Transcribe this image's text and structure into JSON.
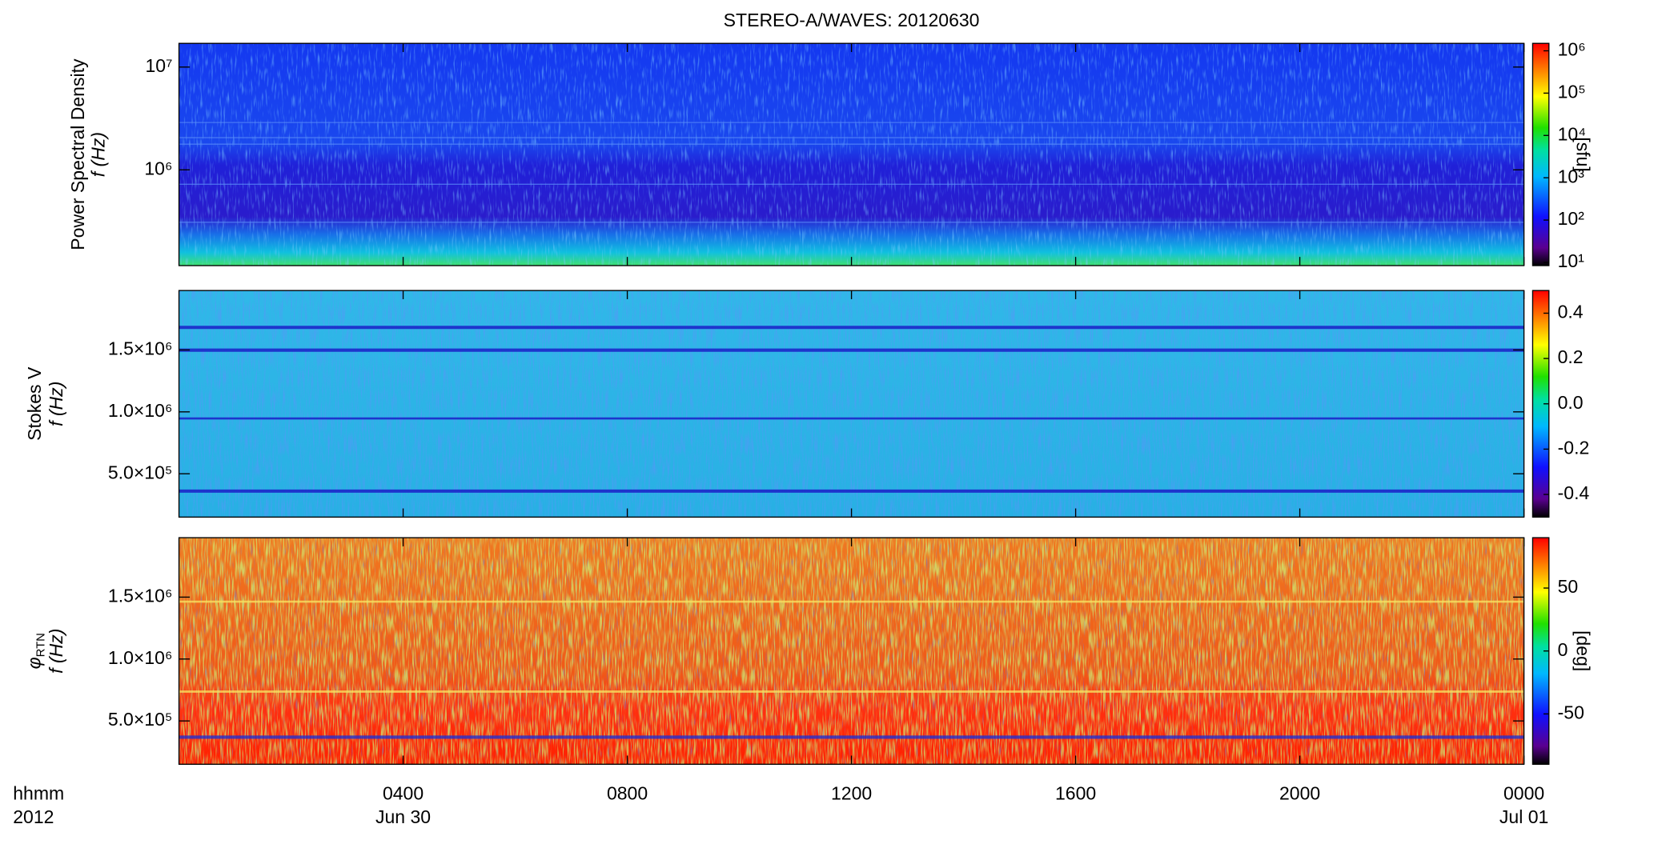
{
  "chart_data": {
    "type": "spectrogram",
    "title": "STEREO-A/WAVES: 20120630",
    "x_label_lines": [
      "hhmm",
      "2012"
    ],
    "xlim": [
      0,
      24
    ],
    "xticks": [
      {
        "value": 4,
        "label": "0400"
      },
      {
        "value": 8,
        "label": "0800"
      },
      {
        "value": 12,
        "label": "1200"
      },
      {
        "value": 16,
        "label": "1600"
      },
      {
        "value": 20,
        "label": "2000"
      },
      {
        "value": 24,
        "label": "0000"
      }
    ],
    "x_date_labels": [
      {
        "value": 4,
        "label": "Jun 30"
      },
      {
        "value": 24,
        "label": "Jul 01"
      }
    ],
    "panels": [
      {
        "ylabel": "Power Spectral Density",
        "ylabel_unit": "f (Hz)",
        "ylog": true,
        "ylim": [
          117000,
          17000000
        ],
        "yticks": [
          {
            "value": 1000000,
            "label": "10⁶"
          },
          {
            "value": 10000000,
            "label": "10⁷"
          }
        ],
        "clog": true,
        "clim": [
          8.4,
          1500000
        ],
        "cticks": [
          {
            "value": 10,
            "label": "10¹"
          },
          {
            "value": 100,
            "label": "10²"
          },
          {
            "value": 1000,
            "label": "10³"
          },
          {
            "value": 10000,
            "label": "10⁴"
          },
          {
            "value": 100000,
            "label": "10⁵"
          },
          {
            "value": 1000000,
            "label": "10⁶"
          }
        ],
        "clabel": "[sfu]"
      },
      {
        "ylabel": "Stokes V",
        "ylabel_unit": "f (Hz)",
        "ylog": false,
        "ylim": [
          150000,
          1980000
        ],
        "yticks": [
          {
            "value": 500000,
            "label": "5.0×10⁵"
          },
          {
            "value": 1000000,
            "label": "1.0×10⁶"
          },
          {
            "value": 1500000,
            "label": "1.5×10⁶"
          }
        ],
        "clog": false,
        "clim": [
          -0.5,
          0.5
        ],
        "cticks": [
          -0.4,
          -0.2,
          {
            "value": 0,
            "label": "0.0"
          },
          0.2,
          0.4
        ]
      },
      {
        "ylabel_symbol": "φ",
        "ylabel_subscript": "RTN",
        "ylabel_unit": "f (Hz)",
        "ylog": false,
        "ylim": [
          150000,
          1980000
        ],
        "yticks": [
          {
            "value": 500000,
            "label": "5.0×10⁵"
          },
          {
            "value": 1000000,
            "label": "1.0×10⁶"
          },
          {
            "value": 1500000,
            "label": "1.5×10⁶"
          }
        ],
        "clog": false,
        "clim": [
          -90,
          90
        ],
        "cticks": [
          -50,
          0,
          50
        ],
        "clabel": "[deg]"
      }
    ]
  }
}
